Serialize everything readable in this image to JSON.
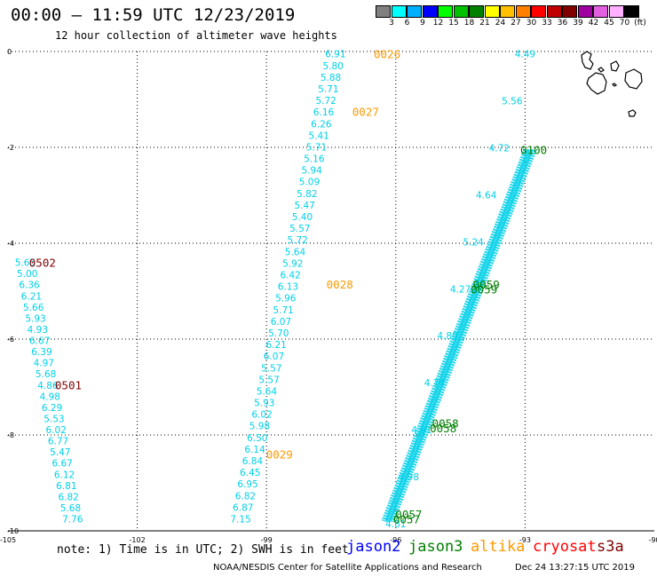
{
  "header": {
    "title": "00:00 – 11:59 UTC 12/23/2019",
    "subtitle": "12 hour collection of altimeter wave heights"
  },
  "scale": {
    "unit": "(ft)",
    "bins": [
      {
        "label": "3",
        "color": "#808080"
      },
      {
        "label": "6",
        "color": "#00ffff"
      },
      {
        "label": "9",
        "color": "#00b0ff"
      },
      {
        "label": "12",
        "color": "#0000ff"
      },
      {
        "label": "15",
        "color": "#00ff00"
      },
      {
        "label": "18",
        "color": "#00c000"
      },
      {
        "label": "21",
        "color": "#008000"
      },
      {
        "label": "24",
        "color": "#ffff00"
      },
      {
        "label": "27",
        "color": "#ffc000"
      },
      {
        "label": "30",
        "color": "#ff8000"
      },
      {
        "label": "33",
        "color": "#ff0000"
      },
      {
        "label": "36",
        "color": "#c00000"
      },
      {
        "label": "39",
        "color": "#800000"
      },
      {
        "label": "42",
        "color": "#a000a0"
      },
      {
        "label": "45",
        "color": "#e060e0"
      },
      {
        "label": "70",
        "color": "#ffb0ff"
      },
      {
        "label": "",
        "color": "#000000"
      }
    ]
  },
  "chart_data": {
    "type": "scatter",
    "xlim": [
      -105,
      -90
    ],
    "ylim": [
      -10,
      0
    ],
    "x_ticks": [
      "-105",
      "-102",
      "-99",
      "-96",
      "-93",
      "-90"
    ],
    "y_ticks": [
      "0",
      "-2",
      "-4",
      "-6",
      "-8",
      "-10"
    ],
    "colors": {
      "jason2": "#0000ff",
      "jason3": "#008000",
      "altika": "#ff9900",
      "cryosat": "#ff0000",
      "s3a": "#800000",
      "swh": "#00d0e8"
    },
    "tracks": [
      {
        "name": "altika",
        "start": [
          -97.4,
          -0.05
        ],
        "end": [
          -99.6,
          -9.75
        ],
        "values": [
          "6.91",
          "5.80",
          "5.88",
          "5.71",
          "5.72",
          "6.16",
          "6.26",
          "5.41",
          "5.71",
          "5.16",
          "5.94",
          "5.09",
          "5.82",
          "5.47",
          "5.40",
          "5.57",
          "5.72",
          "5.64",
          "5.92",
          "6.42",
          "6.13",
          "5.96",
          "5.71",
          "6.07",
          "5.70",
          "6.21",
          "6.07",
          "5.57",
          "5.57",
          "5.64",
          "5.93",
          "6.02",
          "5.98",
          "6.50",
          "6.14",
          "6.84",
          "6.45",
          "6.95",
          "6.82",
          "6.87",
          "7.15"
        ],
        "times": [
          {
            "label": "0026",
            "x": -96.2,
            "y": -0.05
          },
          {
            "label": "0027",
            "x": -96.7,
            "y": -1.25
          },
          {
            "label": "0028",
            "x": -97.3,
            "y": -4.85
          },
          {
            "label": "0029",
            "x": -98.7,
            "y": -8.4
          }
        ]
      },
      {
        "name": "s3a",
        "start": [
          -104.6,
          -4.4
        ],
        "end": [
          -103.5,
          -9.75
        ],
        "values": [
          "5.65",
          "5.00",
          "6.36",
          "6.21",
          "5.66",
          "5.93",
          "4.93",
          "6.67",
          "6.39",
          "4.97",
          "5.68",
          "4.86",
          "4.98",
          "6.29",
          "5.53",
          "6.02",
          "6.77",
          "5.47",
          "6.67",
          "6.12",
          "6.81",
          "6.82",
          "5.68",
          "7.76"
        ],
        "times": [
          {
            "label": "0502",
            "x": -104.2,
            "y": -4.4
          },
          {
            "label": "0501",
            "x": -103.6,
            "y": -6.95
          }
        ]
      },
      {
        "name": "jason3",
        "start": [
          -93.0,
          -0.05
        ],
        "end": [
          -96.0,
          -9.85
        ],
        "values": [
          "4.49",
          "5.56",
          "4.72",
          "4.64",
          "5.24",
          "4.27",
          "4.89",
          "4.74",
          "4.91",
          "4.98",
          "4.81"
        ],
        "times": [
          {
            "label": "0100",
            "x": -92.8,
            "y": -2.05
          }
        ]
      }
    ],
    "dense_track": {
      "start": [
        -92.8,
        -2.05
      ],
      "end": [
        -96.1,
        -9.8
      ]
    },
    "extra_times": [
      {
        "label": "0059",
        "x": -93.9,
        "y": -4.85
      },
      {
        "label": "0059",
        "x": -93.95,
        "y": -4.95
      },
      {
        "label": "0058",
        "x": -94.85,
        "y": -7.75
      },
      {
        "label": "0058",
        "x": -94.9,
        "y": -7.85
      },
      {
        "label": "0057",
        "x": -95.7,
        "y": -9.65
      },
      {
        "label": "0057",
        "x": -95.75,
        "y": -9.75
      }
    ]
  },
  "legend": {
    "note": "note: 1) Time is in UTC; 2) SWH is in feet",
    "satellites": [
      {
        "name": "jason2",
        "color": "#0000ff"
      },
      {
        "name": "jason3",
        "color": "#008000"
      },
      {
        "name": "altika",
        "color": "#ff9900"
      },
      {
        "name": "cryosat",
        "color": "#ff0000"
      },
      {
        "name": "s3a",
        "color": "#800000"
      }
    ]
  },
  "footer": {
    "credit": "NOAA/NESDIS Center for Satellite Applications and Research",
    "stamp": "Dec 24 13:27:15 UTC 2019"
  }
}
